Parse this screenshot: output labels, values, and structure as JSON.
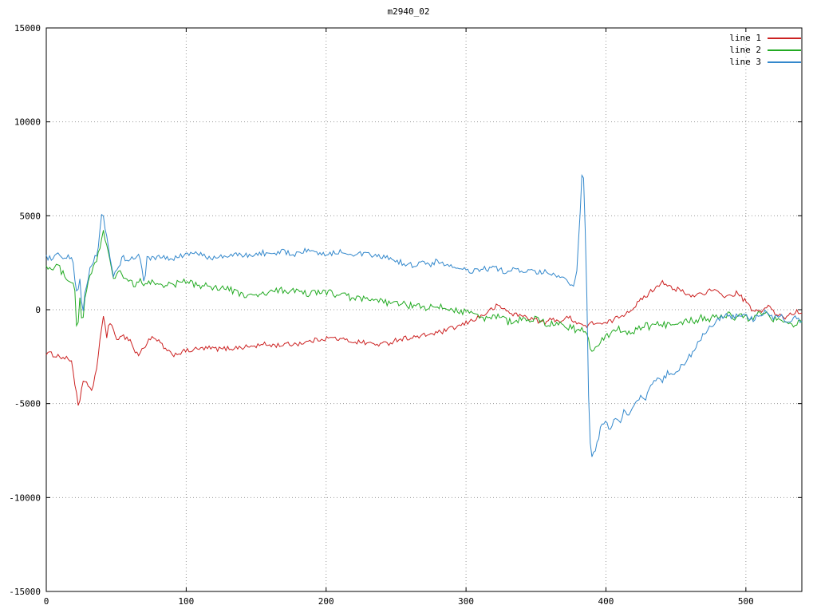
{
  "chart_data": {
    "type": "line",
    "title": "m2940_02",
    "xlabel": "",
    "ylabel": "",
    "xlim": [
      0,
      540
    ],
    "ylim": [
      -15000,
      15000
    ],
    "xticks": [
      0,
      100,
      200,
      300,
      400,
      500
    ],
    "yticks": [
      -15000,
      -10000,
      -5000,
      0,
      5000,
      10000,
      15000
    ],
    "grid": true,
    "legend_position": "top-right",
    "series": [
      {
        "name": "line 1",
        "color": "#cc2222",
        "noise": 130,
        "points": [
          [
            0,
            -2300
          ],
          [
            8,
            -2450
          ],
          [
            14,
            -2600
          ],
          [
            18,
            -2700
          ],
          [
            21,
            -4200
          ],
          [
            23,
            -5300
          ],
          [
            25,
            -4400
          ],
          [
            27,
            -3700
          ],
          [
            30,
            -4000
          ],
          [
            33,
            -4400
          ],
          [
            36,
            -3100
          ],
          [
            39,
            -1200
          ],
          [
            41,
            -300
          ],
          [
            43,
            -1600
          ],
          [
            45,
            -500
          ],
          [
            47,
            -900
          ],
          [
            50,
            -1700
          ],
          [
            53,
            -1300
          ],
          [
            57,
            -1500
          ],
          [
            60,
            -1600
          ],
          [
            63,
            -2200
          ],
          [
            66,
            -2400
          ],
          [
            70,
            -2000
          ],
          [
            74,
            -1500
          ],
          [
            78,
            -1600
          ],
          [
            82,
            -1800
          ],
          [
            86,
            -2200
          ],
          [
            90,
            -2400
          ],
          [
            95,
            -2300
          ],
          [
            100,
            -2200
          ],
          [
            108,
            -2100
          ],
          [
            116,
            -2050
          ],
          [
            124,
            -2100
          ],
          [
            132,
            -2050
          ],
          [
            140,
            -2000
          ],
          [
            148,
            -1950
          ],
          [
            156,
            -1850
          ],
          [
            164,
            -1900
          ],
          [
            172,
            -1850
          ],
          [
            180,
            -1800
          ],
          [
            188,
            -1700
          ],
          [
            196,
            -1550
          ],
          [
            204,
            -1500
          ],
          [
            212,
            -1600
          ],
          [
            220,
            -1700
          ],
          [
            228,
            -1750
          ],
          [
            236,
            -1850
          ],
          [
            244,
            -1800
          ],
          [
            250,
            -1600
          ],
          [
            258,
            -1500
          ],
          [
            266,
            -1450
          ],
          [
            274,
            -1300
          ],
          [
            282,
            -1200
          ],
          [
            290,
            -1000
          ],
          [
            298,
            -800
          ],
          [
            306,
            -500
          ],
          [
            312,
            -300
          ],
          [
            318,
            0
          ],
          [
            322,
            200
          ],
          [
            326,
            100
          ],
          [
            332,
            -200
          ],
          [
            338,
            -300
          ],
          [
            344,
            -400
          ],
          [
            350,
            -550
          ],
          [
            356,
            -700
          ],
          [
            362,
            -500
          ],
          [
            368,
            -600
          ],
          [
            374,
            -400
          ],
          [
            380,
            -700
          ],
          [
            386,
            -900
          ],
          [
            392,
            -650
          ],
          [
            398,
            -800
          ],
          [
            404,
            -600
          ],
          [
            410,
            -350
          ],
          [
            416,
            -100
          ],
          [
            422,
            300
          ],
          [
            428,
            700
          ],
          [
            434,
            1100
          ],
          [
            440,
            1500
          ],
          [
            444,
            1350
          ],
          [
            448,
            1000
          ],
          [
            452,
            1100
          ],
          [
            456,
            900
          ],
          [
            460,
            700
          ],
          [
            464,
            800
          ],
          [
            470,
            900
          ],
          [
            476,
            1050
          ],
          [
            482,
            800
          ],
          [
            488,
            700
          ],
          [
            494,
            900
          ],
          [
            500,
            400
          ],
          [
            506,
            -150
          ],
          [
            512,
            0
          ],
          [
            516,
            200
          ],
          [
            522,
            -300
          ],
          [
            528,
            -400
          ],
          [
            534,
            -150
          ],
          [
            540,
            -100
          ]
        ]
      },
      {
        "name": "line 2",
        "color": "#22aa22",
        "noise": 190,
        "points": [
          [
            0,
            2400
          ],
          [
            4,
            2100
          ],
          [
            8,
            2350
          ],
          [
            12,
            1900
          ],
          [
            16,
            1700
          ],
          [
            20,
            1400
          ],
          [
            22,
            -1400
          ],
          [
            24,
            600
          ],
          [
            26,
            -900
          ],
          [
            28,
            900
          ],
          [
            31,
            1600
          ],
          [
            34,
            2400
          ],
          [
            38,
            3100
          ],
          [
            41,
            4300
          ],
          [
            43,
            3400
          ],
          [
            46,
            2400
          ],
          [
            48,
            1500
          ],
          [
            51,
            2100
          ],
          [
            55,
            1800
          ],
          [
            59,
            1500
          ],
          [
            63,
            1250
          ],
          [
            67,
            1500
          ],
          [
            71,
            1350
          ],
          [
            76,
            1450
          ],
          [
            82,
            1350
          ],
          [
            90,
            1300
          ],
          [
            98,
            1500
          ],
          [
            106,
            1350
          ],
          [
            114,
            1250
          ],
          [
            122,
            1200
          ],
          [
            130,
            1100
          ],
          [
            138,
            850
          ],
          [
            146,
            700
          ],
          [
            154,
            800
          ],
          [
            162,
            950
          ],
          [
            170,
            1050
          ],
          [
            178,
            950
          ],
          [
            186,
            850
          ],
          [
            194,
            900
          ],
          [
            202,
            950
          ],
          [
            210,
            750
          ],
          [
            218,
            650
          ],
          [
            226,
            550
          ],
          [
            234,
            450
          ],
          [
            242,
            400
          ],
          [
            250,
            300
          ],
          [
            258,
            250
          ],
          [
            266,
            150
          ],
          [
            274,
            100
          ],
          [
            282,
            120
          ],
          [
            290,
            30
          ],
          [
            298,
            -80
          ],
          [
            306,
            -180
          ],
          [
            312,
            -550
          ],
          [
            318,
            -420
          ],
          [
            324,
            -300
          ],
          [
            330,
            -650
          ],
          [
            336,
            -500
          ],
          [
            342,
            -580
          ],
          [
            348,
            -450
          ],
          [
            354,
            -680
          ],
          [
            360,
            -780
          ],
          [
            366,
            -700
          ],
          [
            372,
            -880
          ],
          [
            378,
            -1050
          ],
          [
            382,
            -980
          ],
          [
            386,
            -1400
          ],
          [
            390,
            -2150
          ],
          [
            394,
            -1850
          ],
          [
            398,
            -1500
          ],
          [
            403,
            -1250
          ],
          [
            408,
            -1000
          ],
          [
            413,
            -1150
          ],
          [
            418,
            -1300
          ],
          [
            423,
            -1050
          ],
          [
            428,
            -850
          ],
          [
            433,
            -950
          ],
          [
            438,
            -750
          ],
          [
            443,
            -820
          ],
          [
            448,
            -620
          ],
          [
            453,
            -720
          ],
          [
            458,
            -520
          ],
          [
            463,
            -620
          ],
          [
            468,
            -420
          ],
          [
            473,
            -520
          ],
          [
            478,
            -350
          ],
          [
            483,
            -450
          ],
          [
            488,
            -250
          ],
          [
            493,
            -420
          ],
          [
            498,
            -320
          ],
          [
            503,
            -520
          ],
          [
            508,
            -250
          ],
          [
            513,
            -150
          ],
          [
            518,
            -420
          ],
          [
            523,
            -600
          ],
          [
            528,
            -500
          ],
          [
            533,
            -780
          ],
          [
            540,
            -700
          ]
        ]
      },
      {
        "name": "line 3",
        "color": "#3388cc",
        "noise": 150,
        "points": [
          [
            0,
            2800
          ],
          [
            4,
            2700
          ],
          [
            8,
            2900
          ],
          [
            12,
            2650
          ],
          [
            16,
            2800
          ],
          [
            19,
            2550
          ],
          [
            22,
            600
          ],
          [
            24,
            1600
          ],
          [
            26,
            -400
          ],
          [
            28,
            1100
          ],
          [
            31,
            2100
          ],
          [
            34,
            2600
          ],
          [
            37,
            3200
          ],
          [
            40,
            5200
          ],
          [
            42,
            4400
          ],
          [
            44,
            3400
          ],
          [
            46,
            2500
          ],
          [
            48,
            1800
          ],
          [
            51,
            2300
          ],
          [
            55,
            2800
          ],
          [
            59,
            2600
          ],
          [
            63,
            2750
          ],
          [
            67,
            2900
          ],
          [
            70,
            1200
          ],
          [
            72,
            2800
          ],
          [
            76,
            2700
          ],
          [
            82,
            2800
          ],
          [
            90,
            2650
          ],
          [
            98,
            2900
          ],
          [
            106,
            3000
          ],
          [
            114,
            2850
          ],
          [
            122,
            2750
          ],
          [
            130,
            2850
          ],
          [
            138,
            2950
          ],
          [
            146,
            2850
          ],
          [
            154,
            3050
          ],
          [
            162,
            2900
          ],
          [
            170,
            3100
          ],
          [
            178,
            2950
          ],
          [
            186,
            3150
          ],
          [
            194,
            2950
          ],
          [
            202,
            3000
          ],
          [
            210,
            3100
          ],
          [
            218,
            3000
          ],
          [
            226,
            2950
          ],
          [
            234,
            2850
          ],
          [
            242,
            2800
          ],
          [
            250,
            2600
          ],
          [
            256,
            2450
          ],
          [
            262,
            2350
          ],
          [
            268,
            2500
          ],
          [
            274,
            2400
          ],
          [
            280,
            2600
          ],
          [
            286,
            2400
          ],
          [
            292,
            2200
          ],
          [
            298,
            2100
          ],
          [
            304,
            2050
          ],
          [
            312,
            2150
          ],
          [
            320,
            2200
          ],
          [
            328,
            2050
          ],
          [
            336,
            2120
          ],
          [
            344,
            2050
          ],
          [
            350,
            1950
          ],
          [
            356,
            2000
          ],
          [
            362,
            1850
          ],
          [
            368,
            1700
          ],
          [
            373,
            1400
          ],
          [
            376,
            1250
          ],
          [
            379,
            1800
          ],
          [
            381,
            4500
          ],
          [
            383,
            7300
          ],
          [
            384,
            6900
          ],
          [
            386,
            2500
          ],
          [
            388,
            -6500
          ],
          [
            390,
            -7700
          ],
          [
            393,
            -7400
          ],
          [
            396,
            -6300
          ],
          [
            400,
            -6000
          ],
          [
            403,
            -6500
          ],
          [
            406,
            -5600
          ],
          [
            410,
            -6100
          ],
          [
            413,
            -5400
          ],
          [
            416,
            -5800
          ],
          [
            420,
            -5200
          ],
          [
            424,
            -4600
          ],
          [
            428,
            -4850
          ],
          [
            432,
            -4050
          ],
          [
            436,
            -3650
          ],
          [
            440,
            -3850
          ],
          [
            444,
            -3350
          ],
          [
            448,
            -3550
          ],
          [
            452,
            -3200
          ],
          [
            456,
            -2850
          ],
          [
            460,
            -2450
          ],
          [
            464,
            -2050
          ],
          [
            468,
            -1550
          ],
          [
            472,
            -1050
          ],
          [
            476,
            -820
          ],
          [
            480,
            -520
          ],
          [
            485,
            -320
          ],
          [
            490,
            -420
          ],
          [
            495,
            -220
          ],
          [
            500,
            -320
          ],
          [
            505,
            -520
          ],
          [
            510,
            -220
          ],
          [
            515,
            -120
          ],
          [
            520,
            -520
          ],
          [
            525,
            -320
          ],
          [
            530,
            -620
          ],
          [
            535,
            -420
          ],
          [
            540,
            -700
          ]
        ]
      }
    ]
  }
}
